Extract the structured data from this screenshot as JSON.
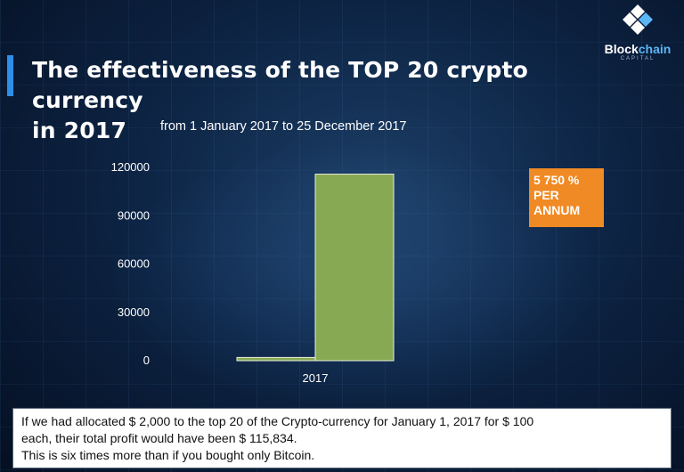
{
  "slide": {
    "title_line1": "The effectiveness of the TOP 20 crypto currency",
    "title_line2": "in 2017",
    "subtitle": "from 1 January 2017 to 25 December 2017",
    "callout_lines": [
      "5 750 %",
      "PER",
      "ANNUM"
    ],
    "callout_color": "#f08a24",
    "note_line1": "If we had allocated $ 2,000 to the top 20 of the Crypto-currency for January 1, 2017 for $ 100",
    "note_line2": "each, their total profit would have been $ 115,834.",
    "note_line3": "This is six times more than if you bought only Bitcoin."
  },
  "logo": {
    "name_part1": "Block",
    "name_part2": "chain",
    "sub": "CAPITAL",
    "icon": "blockchain-diamond-icon",
    "brand_color": "#5cb6f5"
  },
  "chart_data": {
    "type": "bar",
    "categories": [
      "2017"
    ],
    "series": [
      {
        "values": [
          2000
        ],
        "color": "#87a954"
      },
      {
        "values": [
          115834
        ],
        "color": "#87a954"
      }
    ],
    "ylim": [
      0,
      120000
    ],
    "yticks": [
      0,
      30000,
      60000,
      90000,
      120000
    ],
    "ytick_labels": [
      "0",
      "30000",
      "60000",
      "90000",
      "120000"
    ],
    "title": "",
    "xlabel": "",
    "ylabel": "",
    "grid": false,
    "legend": "none"
  }
}
